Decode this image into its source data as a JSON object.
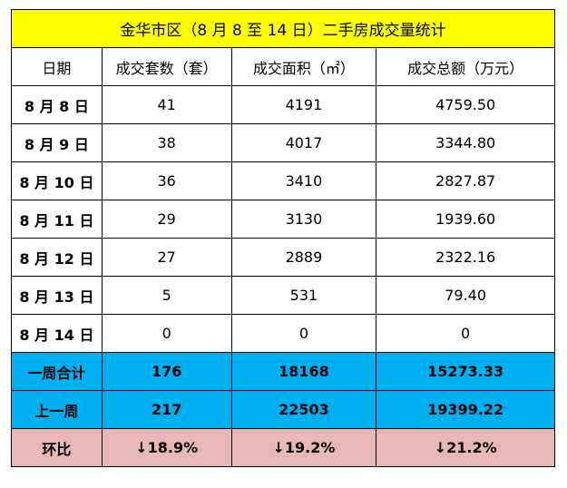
{
  "table": {
    "title": "金华市区（8 月 8 至 14 日）二手房成交量统计",
    "header": [
      "日期",
      "成交套数（套）",
      "成交面积（㎡）",
      "成交总额（万元）"
    ],
    "rows": [
      [
        "8 月 8 日",
        "41",
        "4191",
        "4759.50"
      ],
      [
        "8 月 9 日",
        "38",
        "4017",
        "3344.80"
      ],
      [
        "8 月 10 日",
        "36",
        "3410",
        "2827.87"
      ],
      [
        "8 月 11 日",
        "29",
        "3130",
        "1939.60"
      ],
      [
        "8 月 12 日",
        "27",
        "2889",
        "2322.16"
      ],
      [
        "8 月 13 日",
        "5",
        "531",
        "79.40"
      ],
      [
        "8 月 14 日",
        "0",
        "0",
        "0"
      ]
    ],
    "summary_rows": [
      [
        "一周合计",
        "176",
        "18168",
        "15273.33"
      ],
      [
        "上一周",
        "217",
        "22503",
        "19399.22"
      ]
    ],
    "change_row": [
      "环比",
      "↓18.9%",
      "↓19.2%",
      "↓21.2%"
    ]
  }
}
